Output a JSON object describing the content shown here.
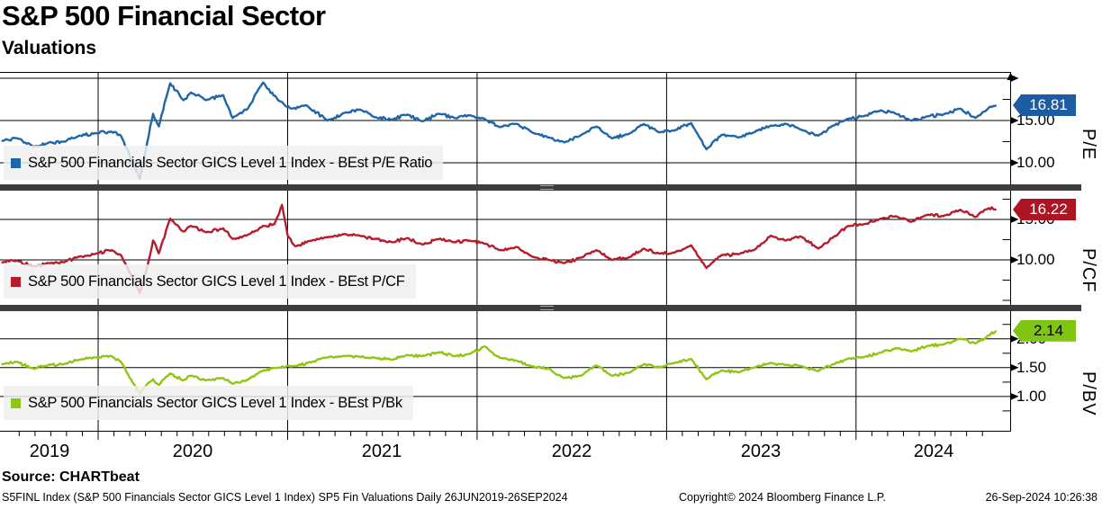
{
  "header": {
    "title": "S&P 500 Financial Sector",
    "subtitle": "Valuations"
  },
  "x_axis": {
    "years": [
      "2019",
      "2020",
      "2021",
      "2022",
      "2023",
      "2024"
    ]
  },
  "footer": {
    "source": "Source: CHARTbeat",
    "left": "S5FINL Index (S&P 500 Financials Sector GICS Level 1 Index) SP5 Fin Valuations  Daily 26JUN2019-26SEP2024",
    "copyright": "Copyright© 2024 Bloomberg Finance L.P.",
    "timestamp": "26-Sep-2024 10:26:38"
  },
  "chart_data": [
    {
      "type": "line",
      "title": "BEst P/E Ratio",
      "legend": "S&P 500 Financials Sector GICS Level 1 Index - BEst P/E Ratio",
      "ylabel": "P/E",
      "color": "#2065a8",
      "tag_bg": "#1d5ca3",
      "tag_fg": "#ffffff",
      "last_label": "16.81",
      "last_value": 16.81,
      "ylim": [
        7.45,
        20.74
      ],
      "yticks": [
        {
          "v": 20,
          "label": ""
        },
        {
          "v": 15,
          "label": "15.00"
        },
        {
          "v": 10,
          "label": "10.00"
        }
      ],
      "minor_yticks": [
        17.5,
        12.5
      ],
      "x_unit": "decimal_year",
      "points": [
        [
          2019.49,
          12.6
        ],
        [
          2019.57,
          12.9
        ],
        [
          2019.66,
          11.9
        ],
        [
          2019.74,
          12.4
        ],
        [
          2019.82,
          12.5
        ],
        [
          2019.9,
          13.2
        ],
        [
          2019.99,
          13.5
        ],
        [
          2020.07,
          13.7
        ],
        [
          2020.12,
          13.2
        ],
        [
          2020.22,
          8.1
        ],
        [
          2020.26,
          12.5
        ],
        [
          2020.29,
          15.8
        ],
        [
          2020.32,
          14.3
        ],
        [
          2020.38,
          19.4
        ],
        [
          2020.45,
          17.4
        ],
        [
          2020.49,
          18.3
        ],
        [
          2020.57,
          17.4
        ],
        [
          2020.66,
          18.0
        ],
        [
          2020.71,
          15.3
        ],
        [
          2020.79,
          16.4
        ],
        [
          2020.87,
          19.5
        ],
        [
          2020.95,
          17.4
        ],
        [
          2021.02,
          16.4
        ],
        [
          2021.1,
          16.8
        ],
        [
          2021.21,
          15.0
        ],
        [
          2021.3,
          15.9
        ],
        [
          2021.38,
          16.3
        ],
        [
          2021.46,
          15.4
        ],
        [
          2021.55,
          15.1
        ],
        [
          2021.63,
          15.7
        ],
        [
          2021.71,
          14.9
        ],
        [
          2021.8,
          15.8
        ],
        [
          2021.88,
          15.3
        ],
        [
          2021.96,
          15.6
        ],
        [
          2022.04,
          15.2
        ],
        [
          2022.12,
          14.2
        ],
        [
          2022.21,
          14.6
        ],
        [
          2022.29,
          13.6
        ],
        [
          2022.38,
          13.0
        ],
        [
          2022.46,
          12.4
        ],
        [
          2022.55,
          13.3
        ],
        [
          2022.63,
          14.3
        ],
        [
          2022.71,
          12.9
        ],
        [
          2022.8,
          13.4
        ],
        [
          2022.88,
          14.6
        ],
        [
          2022.96,
          13.6
        ],
        [
          2023.04,
          13.8
        ],
        [
          2023.13,
          14.7
        ],
        [
          2023.21,
          11.6
        ],
        [
          2023.29,
          13.3
        ],
        [
          2023.38,
          13.0
        ],
        [
          2023.46,
          13.6
        ],
        [
          2023.55,
          14.4
        ],
        [
          2023.63,
          14.6
        ],
        [
          2023.71,
          13.9
        ],
        [
          2023.8,
          13.2
        ],
        [
          2023.88,
          14.4
        ],
        [
          2023.96,
          15.2
        ],
        [
          2024.04,
          15.5
        ],
        [
          2024.13,
          16.2
        ],
        [
          2024.21,
          15.8
        ],
        [
          2024.29,
          15.0
        ],
        [
          2024.38,
          15.5
        ],
        [
          2024.46,
          15.7
        ],
        [
          2024.55,
          16.4
        ],
        [
          2024.63,
          15.3
        ],
        [
          2024.7,
          16.5
        ],
        [
          2024.74,
          16.81
        ]
      ]
    },
    {
      "type": "line",
      "title": "BEst P/CF",
      "legend": "S&P 500 Financials Sector GICS Level 1 Index - BEst P/CF",
      "ylabel": "P/CF",
      "color": "#b71c2c",
      "tag_bg": "#ad1424",
      "tag_fg": "#ffffff",
      "last_label": "16.22",
      "last_value": 16.22,
      "ylim": [
        4.44,
        18.56
      ],
      "yticks": [
        {
          "v": 15,
          "label": "15.00"
        },
        {
          "v": 10,
          "label": "10.00"
        }
      ],
      "minor_yticks": [
        17.5,
        12.5,
        7.5,
        5
      ],
      "x_unit": "decimal_year",
      "points": [
        [
          2019.49,
          9.7
        ],
        [
          2019.57,
          9.9
        ],
        [
          2019.66,
          9.2
        ],
        [
          2019.74,
          9.6
        ],
        [
          2019.82,
          9.7
        ],
        [
          2019.9,
          10.4
        ],
        [
          2019.99,
          10.8
        ],
        [
          2020.07,
          11.2
        ],
        [
          2020.12,
          10.6
        ],
        [
          2020.22,
          5.9
        ],
        [
          2020.26,
          9.2
        ],
        [
          2020.29,
          12.4
        ],
        [
          2020.32,
          10.8
        ],
        [
          2020.38,
          15.1
        ],
        [
          2020.45,
          13.5
        ],
        [
          2020.49,
          14.2
        ],
        [
          2020.57,
          13.4
        ],
        [
          2020.66,
          13.9
        ],
        [
          2020.71,
          12.6
        ],
        [
          2020.79,
          13.1
        ],
        [
          2020.87,
          14.2
        ],
        [
          2020.93,
          14.4
        ],
        [
          2020.97,
          16.8
        ],
        [
          2021.0,
          13.0
        ],
        [
          2021.04,
          11.7
        ],
        [
          2021.13,
          12.4
        ],
        [
          2021.21,
          12.8
        ],
        [
          2021.3,
          13.2
        ],
        [
          2021.38,
          13.0
        ],
        [
          2021.46,
          12.6
        ],
        [
          2021.55,
          12.2
        ],
        [
          2021.63,
          12.7
        ],
        [
          2021.71,
          11.9
        ],
        [
          2021.8,
          12.6
        ],
        [
          2021.88,
          12.2
        ],
        [
          2021.96,
          12.4
        ],
        [
          2022.04,
          12.0
        ],
        [
          2022.12,
          11.2
        ],
        [
          2022.21,
          11.6
        ],
        [
          2022.29,
          10.4
        ],
        [
          2022.38,
          10.0
        ],
        [
          2022.46,
          9.6
        ],
        [
          2022.55,
          10.3
        ],
        [
          2022.63,
          11.2
        ],
        [
          2022.71,
          10.0
        ],
        [
          2022.8,
          10.3
        ],
        [
          2022.88,
          11.4
        ],
        [
          2022.96,
          10.8
        ],
        [
          2023.04,
          10.9
        ],
        [
          2023.13,
          11.8
        ],
        [
          2023.21,
          9.0
        ],
        [
          2023.29,
          10.6
        ],
        [
          2023.38,
          10.7
        ],
        [
          2023.46,
          11.2
        ],
        [
          2023.55,
          13.0
        ],
        [
          2023.63,
          12.4
        ],
        [
          2023.71,
          12.9
        ],
        [
          2023.8,
          11.4
        ],
        [
          2023.88,
          12.8
        ],
        [
          2023.96,
          14.2
        ],
        [
          2024.04,
          14.4
        ],
        [
          2024.13,
          15.1
        ],
        [
          2024.21,
          15.4
        ],
        [
          2024.29,
          14.7
        ],
        [
          2024.38,
          15.6
        ],
        [
          2024.46,
          15.4
        ],
        [
          2024.55,
          16.2
        ],
        [
          2024.63,
          15.3
        ],
        [
          2024.7,
          16.4
        ],
        [
          2024.74,
          16.22
        ]
      ]
    },
    {
      "type": "line",
      "title": "BEst P/Bk",
      "legend": "S&P 500 Financials Sector GICS Level 1 Index - BEst P/Bk",
      "ylabel": "P/BV",
      "color": "#8dc714",
      "tag_bg": "#80c414",
      "tag_fg": "#000000",
      "last_label": "2.14",
      "last_value": 2.14,
      "ylim": [
        0.39,
        2.48
      ],
      "yticks": [
        {
          "v": 2,
          "label": "2.00"
        },
        {
          "v": 1.5,
          "label": "1.50"
        },
        {
          "v": 1,
          "label": "1.00"
        }
      ],
      "minor_yticks": [
        2.25,
        1.75,
        1.25,
        0.75
      ],
      "x_unit": "decimal_year",
      "points": [
        [
          2019.49,
          1.56
        ],
        [
          2019.57,
          1.6
        ],
        [
          2019.66,
          1.48
        ],
        [
          2019.74,
          1.55
        ],
        [
          2019.82,
          1.56
        ],
        [
          2019.9,
          1.64
        ],
        [
          2019.99,
          1.68
        ],
        [
          2020.07,
          1.7
        ],
        [
          2020.12,
          1.6
        ],
        [
          2020.22,
          1.05
        ],
        [
          2020.26,
          1.22
        ],
        [
          2020.29,
          1.3
        ],
        [
          2020.32,
          1.2
        ],
        [
          2020.38,
          1.4
        ],
        [
          2020.45,
          1.28
        ],
        [
          2020.49,
          1.36
        ],
        [
          2020.57,
          1.28
        ],
        [
          2020.66,
          1.32
        ],
        [
          2020.71,
          1.22
        ],
        [
          2020.79,
          1.29
        ],
        [
          2020.87,
          1.45
        ],
        [
          2020.95,
          1.5
        ],
        [
          2021.04,
          1.53
        ],
        [
          2021.13,
          1.6
        ],
        [
          2021.21,
          1.68
        ],
        [
          2021.3,
          1.7
        ],
        [
          2021.38,
          1.69
        ],
        [
          2021.46,
          1.67
        ],
        [
          2021.55,
          1.64
        ],
        [
          2021.63,
          1.72
        ],
        [
          2021.71,
          1.7
        ],
        [
          2021.8,
          1.77
        ],
        [
          2021.88,
          1.7
        ],
        [
          2021.96,
          1.74
        ],
        [
          2022.04,
          1.87
        ],
        [
          2022.12,
          1.67
        ],
        [
          2022.21,
          1.62
        ],
        [
          2022.29,
          1.52
        ],
        [
          2022.38,
          1.48
        ],
        [
          2022.46,
          1.32
        ],
        [
          2022.55,
          1.36
        ],
        [
          2022.63,
          1.54
        ],
        [
          2022.71,
          1.36
        ],
        [
          2022.8,
          1.41
        ],
        [
          2022.88,
          1.56
        ],
        [
          2022.96,
          1.51
        ],
        [
          2023.04,
          1.58
        ],
        [
          2023.13,
          1.65
        ],
        [
          2023.21,
          1.3
        ],
        [
          2023.29,
          1.45
        ],
        [
          2023.38,
          1.42
        ],
        [
          2023.46,
          1.5
        ],
        [
          2023.55,
          1.58
        ],
        [
          2023.63,
          1.55
        ],
        [
          2023.71,
          1.53
        ],
        [
          2023.8,
          1.44
        ],
        [
          2023.88,
          1.56
        ],
        [
          2023.96,
          1.66
        ],
        [
          2024.04,
          1.68
        ],
        [
          2024.13,
          1.76
        ],
        [
          2024.21,
          1.84
        ],
        [
          2024.29,
          1.78
        ],
        [
          2024.38,
          1.88
        ],
        [
          2024.46,
          1.9
        ],
        [
          2024.55,
          2.0
        ],
        [
          2024.63,
          1.92
        ],
        [
          2024.7,
          2.06
        ],
        [
          2024.74,
          2.14
        ]
      ]
    }
  ]
}
